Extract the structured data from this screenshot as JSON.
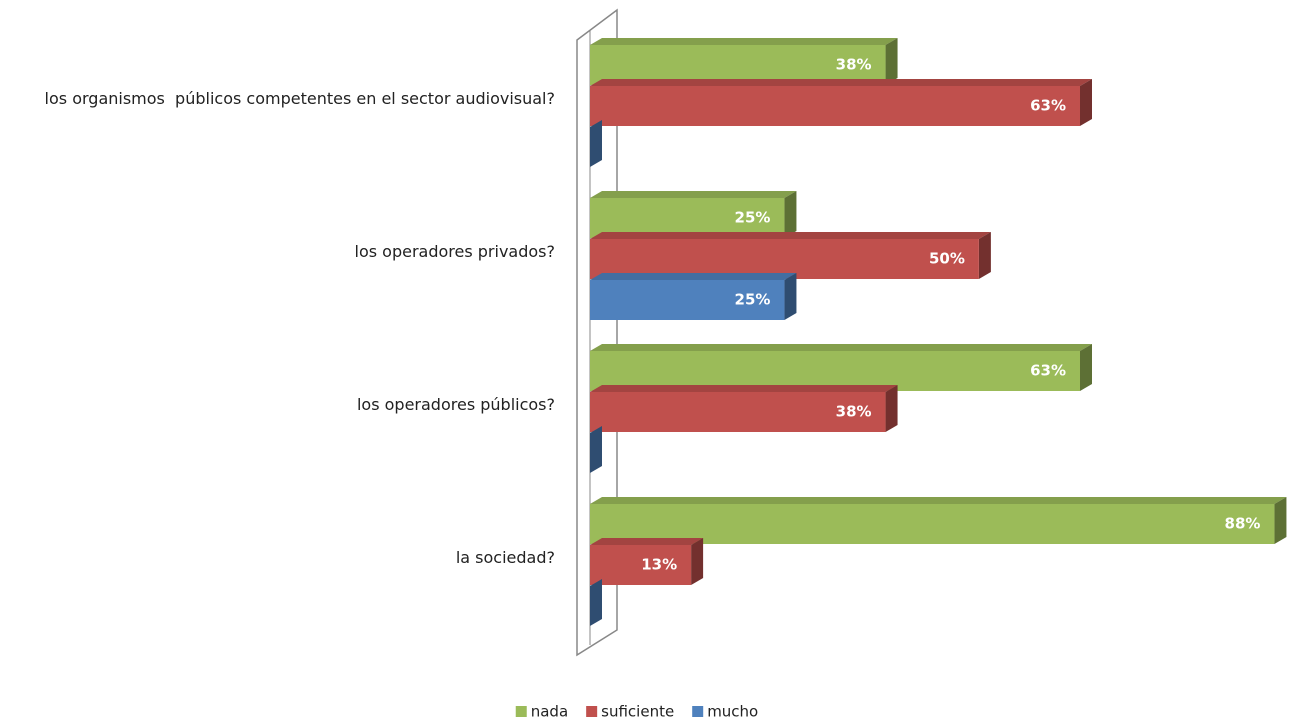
{
  "chart_data": {
    "type": "bar3d_horizontal",
    "categories": [
      "los organismos  públicos competentes en el sector audiovisual?",
      "los operadores privados?",
      "los operadores públicos?",
      "la sociedad?"
    ],
    "series": [
      {
        "name": "nada",
        "color": "#9bbb59",
        "values": [
          38,
          25,
          63,
          88
        ],
        "value_labels": [
          "38%",
          "25%",
          "63%",
          "88%"
        ]
      },
      {
        "name": "suficiente",
        "color": "#c0504d",
        "values": [
          63,
          50,
          38,
          13
        ],
        "value_labels": [
          "63%",
          "50%",
          "38%",
          "13%"
        ]
      },
      {
        "name": "mucho",
        "color": "#4f81bd",
        "values": [
          0,
          25,
          0,
          0
        ],
        "value_labels": [
          null,
          "25%",
          null,
          null
        ]
      }
    ],
    "xlim": [
      0,
      90
    ],
    "legend": "bottom"
  }
}
